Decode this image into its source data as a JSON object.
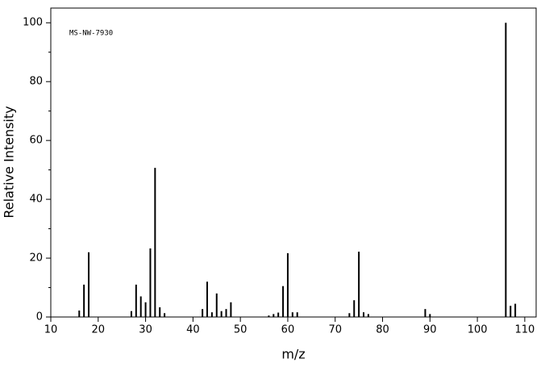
{
  "chart_data": {
    "type": "spectrum",
    "annotation": "MS-NW-7930",
    "xlabel": "m/z",
    "ylabel": "Relative Intensity",
    "color": "#000000",
    "x": [
      16,
      17,
      18,
      27,
      28,
      29,
      30,
      31,
      32,
      33,
      34,
      42,
      43,
      44,
      45,
      46,
      47,
      48,
      56,
      57,
      58,
      59,
      60,
      61,
      62,
      73,
      74,
      75,
      76,
      77,
      89,
      90,
      106,
      107,
      108
    ],
    "values": [
      2.2,
      11,
      22,
      2,
      11,
      7,
      5,
      23.3,
      50.7,
      3.3,
      1.3,
      2.7,
      12,
      1.6,
      8,
      2,
      2.7,
      5,
      0.5,
      1,
      1.5,
      10.5,
      21.7,
      1.6,
      1.6,
      1.3,
      5.7,
      22.2,
      1.6,
      1,
      2.7,
      1,
      100,
      3.8,
      4.5
    ],
    "xlim": [
      10,
      112.4
    ],
    "ylim": [
      0,
      105
    ],
    "xticks": [
      10,
      20,
      30,
      40,
      50,
      60,
      70,
      80,
      90,
      100,
      110
    ],
    "yticks": [
      0,
      20,
      40,
      60,
      80,
      100
    ],
    "yminorticks": [
      10,
      30,
      50,
      70,
      90
    ]
  }
}
